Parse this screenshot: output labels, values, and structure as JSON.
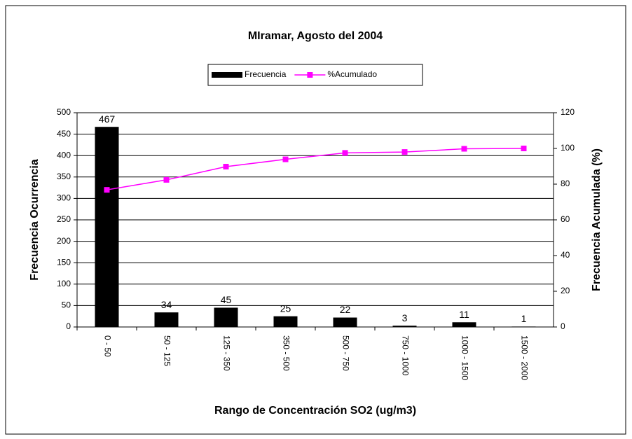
{
  "chart_data": {
    "type": "bar_line",
    "title": "MIramar, Agosto del 2004",
    "x_label": "Rango de Concentración SO2 (ug/m3)",
    "y_label": "Frecuencia Ocurrencia",
    "y2_label": "Frecuencia Acumulada (%)",
    "categories": [
      "0 - 50",
      "50 - 125",
      "125 - 350",
      "350 - 500",
      "500 - 750",
      "750 - 1000",
      "1000 - 1500",
      "1500 - 2000"
    ],
    "series": [
      {
        "name": "Frecuencia",
        "type": "bar",
        "color": "#000000",
        "values": [
          467,
          34,
          45,
          25,
          22,
          3,
          11,
          1
        ]
      },
      {
        "name": "%Acumulado",
        "type": "line",
        "axis": "y2",
        "color": "#ff00ff",
        "values": [
          76.8,
          82.4,
          89.8,
          93.9,
          97.5,
          98.0,
          99.8,
          100
        ]
      }
    ],
    "ylim": [
      0,
      500
    ],
    "yticks": [
      0,
      50,
      100,
      150,
      200,
      250,
      300,
      350,
      400,
      450,
      500
    ],
    "y2lim": [
      0,
      120
    ],
    "y2ticks": [
      0,
      20,
      40,
      60,
      80,
      100,
      120
    ],
    "grid": true,
    "legend": "top"
  }
}
